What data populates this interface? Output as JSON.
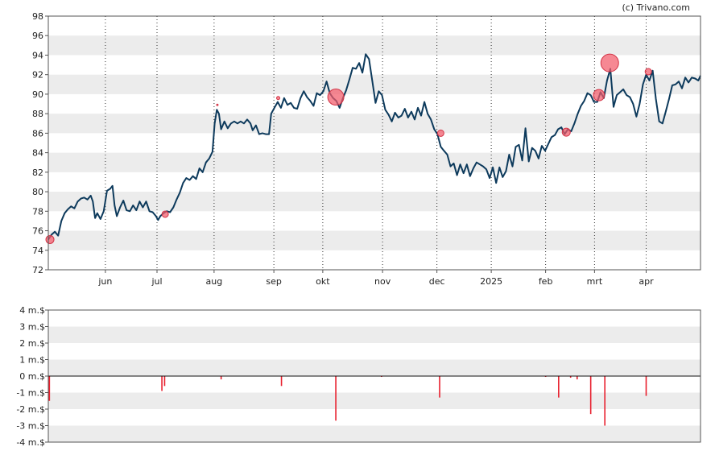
{
  "credit": "(c) Trivano.com",
  "colors": {
    "price_line": "#0d3a5c",
    "event_marker": "#f25a6a",
    "volume_bar": "#e8202e",
    "band": "#ececec",
    "frame": "#555555"
  },
  "chart_data": [
    {
      "type": "line",
      "title": "",
      "xlabel": "",
      "ylabel": "",
      "ylim": [
        72,
        98
      ],
      "yticks": [
        72,
        74,
        76,
        78,
        80,
        82,
        84,
        86,
        88,
        90,
        92,
        94,
        96,
        98
      ],
      "xlim": [
        0,
        120
      ],
      "xticks": [
        {
          "label": "jun",
          "x": 10.5
        },
        {
          "label": "jul",
          "x": 20
        },
        {
          "label": "aug",
          "x": 30.5
        },
        {
          "label": "sep",
          "x": 41.5
        },
        {
          "label": "okt",
          "x": 50.5
        },
        {
          "label": "nov",
          "x": 61.5
        },
        {
          "label": "dec",
          "x": 71.5
        },
        {
          "label": "2025",
          "x": 81.5
        },
        {
          "label": "feb",
          "x": 91.5
        },
        {
          "label": "mrt",
          "x": 100.5
        },
        {
          "label": "apr",
          "x": 110
        }
      ],
      "grid": "alternating horizontal bands, dotted vertical lines at month ticks",
      "series": [
        {
          "name": "",
          "points": [
            [
              0,
              75.1
            ],
            [
              0.6,
              75.6
            ],
            [
              1.2,
              75.9
            ],
            [
              1.8,
              75.5
            ],
            [
              2.4,
              77.0
            ],
            [
              3.0,
              77.8
            ],
            [
              3.6,
              78.2
            ],
            [
              4.2,
              78.5
            ],
            [
              4.8,
              78.3
            ],
            [
              5.4,
              79.0
            ],
            [
              6.0,
              79.3
            ],
            [
              6.6,
              79.4
            ],
            [
              7.2,
              79.2
            ],
            [
              7.8,
              79.6
            ],
            [
              8.2,
              79.0
            ],
            [
              8.6,
              77.3
            ],
            [
              9.0,
              77.8
            ],
            [
              9.6,
              77.2
            ],
            [
              10.2,
              78.0
            ],
            [
              10.8,
              80.1
            ],
            [
              11.4,
              80.3
            ],
            [
              11.8,
              80.6
            ],
            [
              12.2,
              78.6
            ],
            [
              12.6,
              77.5
            ],
            [
              13.2,
              78.4
            ],
            [
              13.8,
              79.1
            ],
            [
              14.4,
              78.1
            ],
            [
              15.0,
              78.0
            ],
            [
              15.6,
              78.6
            ],
            [
              16.2,
              78.1
            ],
            [
              16.8,
              79.0
            ],
            [
              17.4,
              78.4
            ],
            [
              18.0,
              79.0
            ],
            [
              18.6,
              78.0
            ],
            [
              19.2,
              77.9
            ],
            [
              19.8,
              77.5
            ],
            [
              20.2,
              77.1
            ],
            [
              20.6,
              77.5
            ],
            [
              21.2,
              77.8
            ],
            [
              21.8,
              78.0
            ],
            [
              22.4,
              77.9
            ],
            [
              23.0,
              78.4
            ],
            [
              23.6,
              79.2
            ],
            [
              24.2,
              79.9
            ],
            [
              24.8,
              80.9
            ],
            [
              25.4,
              81.4
            ],
            [
              26.0,
              81.2
            ],
            [
              26.6,
              81.6
            ],
            [
              27.2,
              81.3
            ],
            [
              27.8,
              82.4
            ],
            [
              28.4,
              82.0
            ],
            [
              29.0,
              83.0
            ],
            [
              29.6,
              83.4
            ],
            [
              30.2,
              84.1
            ],
            [
              30.6,
              87.0
            ],
            [
              31.0,
              88.4
            ],
            [
              31.4,
              88.0
            ],
            [
              31.8,
              86.4
            ],
            [
              32.4,
              87.2
            ],
            [
              33.0,
              86.5
            ],
            [
              33.6,
              87.0
            ],
            [
              34.2,
              87.2
            ],
            [
              34.8,
              87.0
            ],
            [
              35.4,
              87.2
            ],
            [
              36.0,
              87.0
            ],
            [
              36.6,
              87.4
            ],
            [
              37.2,
              87.0
            ],
            [
              37.6,
              86.3
            ],
            [
              38.2,
              86.8
            ],
            [
              38.8,
              85.9
            ],
            [
              39.4,
              86.0
            ],
            [
              40.0,
              85.9
            ],
            [
              40.6,
              85.9
            ],
            [
              41.0,
              88.0
            ],
            [
              41.6,
              88.6
            ],
            [
              42.2,
              89.2
            ],
            [
              42.8,
              88.6
            ],
            [
              43.4,
              89.6
            ],
            [
              44.0,
              88.9
            ],
            [
              44.6,
              89.1
            ],
            [
              45.2,
              88.6
            ],
            [
              45.8,
              88.5
            ],
            [
              46.4,
              89.6
            ],
            [
              47.0,
              90.3
            ],
            [
              47.6,
              89.7
            ],
            [
              48.2,
              89.3
            ],
            [
              48.8,
              88.8
            ],
            [
              49.4,
              90.1
            ],
            [
              50.0,
              89.9
            ],
            [
              50.6,
              90.3
            ],
            [
              51.2,
              91.3
            ],
            [
              51.8,
              90.1
            ],
            [
              52.4,
              89.6
            ],
            [
              53.0,
              89.3
            ],
            [
              53.6,
              88.6
            ],
            [
              54.2,
              89.6
            ],
            [
              54.8,
              90.4
            ],
            [
              55.4,
              91.5
            ],
            [
              56.0,
              92.7
            ],
            [
              56.6,
              92.6
            ],
            [
              57.2,
              93.2
            ],
            [
              57.8,
              92.2
            ],
            [
              58.4,
              94.1
            ],
            [
              59.0,
              93.6
            ],
            [
              59.6,
              91.4
            ],
            [
              60.2,
              89.1
            ],
            [
              60.8,
              90.3
            ],
            [
              61.4,
              89.9
            ],
            [
              62.0,
              88.4
            ],
            [
              62.6,
              87.9
            ],
            [
              63.2,
              87.2
            ],
            [
              63.8,
              88.1
            ],
            [
              64.4,
              87.6
            ],
            [
              65.0,
              87.8
            ],
            [
              65.6,
              88.5
            ],
            [
              66.2,
              87.6
            ],
            [
              66.8,
              88.2
            ],
            [
              67.4,
              87.4
            ],
            [
              68.0,
              88.6
            ],
            [
              68.6,
              87.8
            ],
            [
              69.2,
              89.2
            ],
            [
              69.8,
              88.0
            ],
            [
              70.4,
              87.4
            ],
            [
              71.0,
              86.4
            ],
            [
              71.6,
              85.9
            ],
            [
              72.2,
              84.6
            ],
            [
              72.8,
              84.2
            ],
            [
              73.4,
              83.8
            ],
            [
              74.0,
              82.6
            ],
            [
              74.6,
              82.9
            ],
            [
              75.2,
              81.7
            ],
            [
              75.8,
              82.8
            ],
            [
              76.4,
              81.9
            ],
            [
              77.0,
              82.8
            ],
            [
              77.6,
              81.6
            ],
            [
              78.2,
              82.4
            ],
            [
              78.8,
              83.0
            ],
            [
              79.4,
              82.8
            ],
            [
              80.0,
              82.6
            ],
            [
              80.6,
              82.3
            ],
            [
              81.2,
              81.4
            ],
            [
              81.8,
              82.5
            ],
            [
              82.4,
              80.9
            ],
            [
              83.0,
              82.5
            ],
            [
              83.6,
              81.5
            ],
            [
              84.2,
              82.1
            ],
            [
              84.8,
              83.8
            ],
            [
              85.4,
              82.6
            ],
            [
              86.0,
              84.6
            ],
            [
              86.6,
              84.8
            ],
            [
              87.2,
              83.2
            ],
            [
              87.8,
              86.5
            ],
            [
              88.4,
              83.1
            ],
            [
              89.0,
              84.5
            ],
            [
              89.6,
              84.2
            ],
            [
              90.2,
              83.4
            ],
            [
              90.8,
              84.7
            ],
            [
              91.4,
              84.2
            ],
            [
              92.0,
              84.9
            ],
            [
              92.6,
              85.6
            ],
            [
              93.2,
              85.8
            ],
            [
              93.8,
              86.4
            ],
            [
              94.4,
              86.6
            ],
            [
              95.0,
              85.9
            ],
            [
              95.6,
              86.4
            ],
            [
              96.2,
              86.2
            ],
            [
              96.8,
              87.0
            ],
            [
              97.4,
              88.0
            ],
            [
              98.0,
              88.8
            ],
            [
              98.6,
              89.3
            ],
            [
              99.2,
              90.1
            ],
            [
              99.8,
              89.9
            ],
            [
              100.4,
              89.2
            ],
            [
              101.0,
              89.2
            ],
            [
              101.6,
              90.2
            ],
            [
              102.2,
              89.6
            ],
            [
              102.8,
              91.4
            ],
            [
              103.4,
              92.6
            ],
            [
              104.0,
              88.7
            ],
            [
              104.6,
              89.9
            ],
            [
              105.2,
              90.2
            ],
            [
              105.8,
              90.5
            ],
            [
              106.4,
              89.9
            ],
            [
              107.0,
              89.7
            ],
            [
              107.6,
              89.0
            ],
            [
              108.2,
              87.7
            ],
            [
              108.8,
              89.0
            ],
            [
              109.4,
              91.0
            ],
            [
              110.0,
              92.0
            ],
            [
              110.6,
              91.4
            ],
            [
              111.2,
              92.4
            ],
            [
              111.8,
              89.5
            ],
            [
              112.4,
              87.2
            ],
            [
              113.0,
              87.0
            ],
            [
              113.6,
              88.2
            ],
            [
              114.2,
              89.5
            ],
            [
              114.8,
              90.9
            ],
            [
              115.4,
              91.0
            ],
            [
              116.0,
              91.3
            ],
            [
              116.6,
              90.6
            ],
            [
              117.2,
              91.7
            ],
            [
              117.8,
              91.2
            ],
            [
              118.4,
              91.7
            ],
            [
              119.0,
              91.6
            ],
            [
              119.6,
              91.4
            ],
            [
              120.0,
              91.9
            ]
          ]
        }
      ],
      "markers": [
        {
          "x": 0.3,
          "y": 75.1,
          "size": 5
        },
        {
          "x": 21.5,
          "y": 77.7,
          "size": 4
        },
        {
          "x": 31.1,
          "y": 88.9,
          "size": 1
        },
        {
          "x": 42.3,
          "y": 89.6,
          "size": 2
        },
        {
          "x": 52.9,
          "y": 89.7,
          "size": 10
        },
        {
          "x": 72.2,
          "y": 86.0,
          "size": 4
        },
        {
          "x": 95.3,
          "y": 86.1,
          "size": 5
        },
        {
          "x": 101.3,
          "y": 89.9,
          "size": 7
        },
        {
          "x": 103.3,
          "y": 93.2,
          "size": 11
        },
        {
          "x": 110.4,
          "y": 92.3,
          "size": 4
        }
      ]
    },
    {
      "type": "bar",
      "title": "",
      "xlabel": "",
      "ylabel": "",
      "unit": "m.$",
      "ylim": [
        -4,
        4
      ],
      "yticks": [
        "4 m.$",
        "3 m.$",
        "2 m.$",
        "1 m.$",
        "0 m.$",
        "-1 m.$",
        "-2 m.$",
        "-3 m.$",
        "-4 m.$"
      ],
      "ytick_values": [
        4,
        3,
        2,
        1,
        0,
        -1,
        -2,
        -3,
        -4
      ],
      "xlim": [
        0,
        120
      ],
      "bars": [
        {
          "x": 0.2,
          "value": -1.5
        },
        {
          "x": 20.9,
          "value": -0.9
        },
        {
          "x": 21.4,
          "value": -0.6
        },
        {
          "x": 31.8,
          "value": -0.2
        },
        {
          "x": 42.9,
          "value": -0.6
        },
        {
          "x": 52.9,
          "value": -2.7
        },
        {
          "x": 61.3,
          "value": -0.05
        },
        {
          "x": 72.0,
          "value": -1.3
        },
        {
          "x": 91.5,
          "value": -0.05
        },
        {
          "x": 93.9,
          "value": -1.3
        },
        {
          "x": 96.1,
          "value": -0.1
        },
        {
          "x": 97.3,
          "value": -0.2
        },
        {
          "x": 99.8,
          "value": -2.3
        },
        {
          "x": 102.4,
          "value": -3.0
        },
        {
          "x": 110.0,
          "value": -1.2
        }
      ]
    }
  ]
}
